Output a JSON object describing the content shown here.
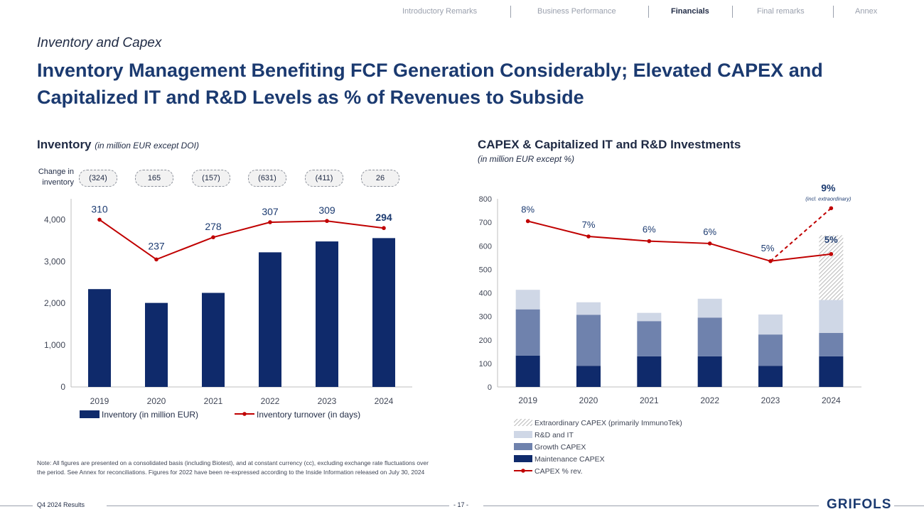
{
  "nav": {
    "items": [
      "Introductory Remarks",
      "Business Performance",
      "Financials",
      "Final remarks",
      "Annex"
    ],
    "active": "Financials"
  },
  "header": {
    "subtitle": "Inventory and Capex",
    "title": "Inventory Management Benefiting FCF Generation Considerably; Elevated CAPEX and Capitalized IT and R&D Levels as % of Revenues to Subside"
  },
  "inventory_section": {
    "title": "Inventory",
    "units": "(in million EUR except DOI)",
    "change_label": "Change in inventory",
    "changes": [
      "(324)",
      "165",
      "(157)",
      "(631)",
      "(411)",
      "26"
    ]
  },
  "capex_section": {
    "title": "CAPEX & Capitalized IT and R&D Investments",
    "units": "(in million EUR except %)"
  },
  "note": "Note: All figures are presented on a consolidated basis (including Biotest), and at constant currency (cc), excluding exchange rate fluctuations over the period. See Annex for reconciliations. Figures for 2022 have been re-expressed according to the Inside Information released on July 30, 2024",
  "footer": {
    "left": "Q4 2024 Results",
    "page": "- 17 -",
    "logo": "GRIFOLS"
  },
  "colors": {
    "navy": "#0f2a6b",
    "growth": "#6f82ad",
    "rd": "#cfd7e6",
    "line": "#c00000",
    "label": "#1b3a70"
  },
  "chart_data": [
    {
      "type": "bar",
      "title": "Inventory",
      "categories": [
        "2019",
        "2020",
        "2021",
        "2022",
        "2023",
        "2024"
      ],
      "series": [
        {
          "name": "Inventory (in million EUR)",
          "values": [
            2340,
            2010,
            2250,
            3220,
            3480,
            3560
          ]
        }
      ],
      "ylim": [
        0,
        4500
      ],
      "yticks": [
        "0",
        "1,000",
        "2,000",
        "3,000",
        "4,000"
      ],
      "ytick_values": [
        0,
        1000,
        2000,
        3000,
        4000
      ],
      "line_series": {
        "name": "Inventory turnover (in days)",
        "values": [
          310,
          237,
          278,
          307,
          309,
          294
        ],
        "plot_positions": [
          4000,
          3050,
          3580,
          3940,
          3970,
          3800
        ],
        "labels": [
          "310",
          "237",
          "278",
          "307",
          "309",
          "294"
        ]
      },
      "legend": [
        "Inventory (in million EUR)",
        "Inventory turnover (in days)"
      ]
    },
    {
      "type": "bar",
      "title": "CAPEX & Capitalized IT and R&D Investments",
      "categories": [
        "2019",
        "2020",
        "2021",
        "2022",
        "2023",
        "2024"
      ],
      "series": [
        {
          "name": "Maintenance CAPEX",
          "values": [
            133,
            90,
            130,
            130,
            90,
            130
          ]
        },
        {
          "name": "Growth CAPEX",
          "values": [
            197,
            217,
            150,
            165,
            133,
            100
          ]
        },
        {
          "name": "R&D and IT",
          "values": [
            83,
            53,
            35,
            80,
            85,
            140
          ]
        },
        {
          "name": "Extraordinary CAPEX (primarily ImmunoTek)",
          "values": [
            0,
            0,
            0,
            0,
            0,
            275
          ]
        }
      ],
      "ylim": [
        0,
        800
      ],
      "yticks": [
        "0",
        "100",
        "200",
        "300",
        "400",
        "500",
        "600",
        "700",
        "800"
      ],
      "ytick_values": [
        0,
        100,
        200,
        300,
        400,
        500,
        600,
        700,
        800
      ],
      "line_series": {
        "name": "CAPEX % rev.",
        "labels": [
          "8%",
          "7%",
          "6%",
          "6%",
          "5%",
          "5%"
        ],
        "plot_positions": [
          705,
          640,
          620,
          610,
          535,
          565
        ],
        "extraordinary_position": 760,
        "extraordinary_label": "9%",
        "extraordinary_note": "(incl. extraordinary)"
      },
      "legend": [
        "Extraordinary CAPEX (primarily ImmunoTek)",
        "R&D and IT",
        "Growth CAPEX",
        "Maintenance CAPEX",
        "CAPEX % rev."
      ]
    }
  ]
}
